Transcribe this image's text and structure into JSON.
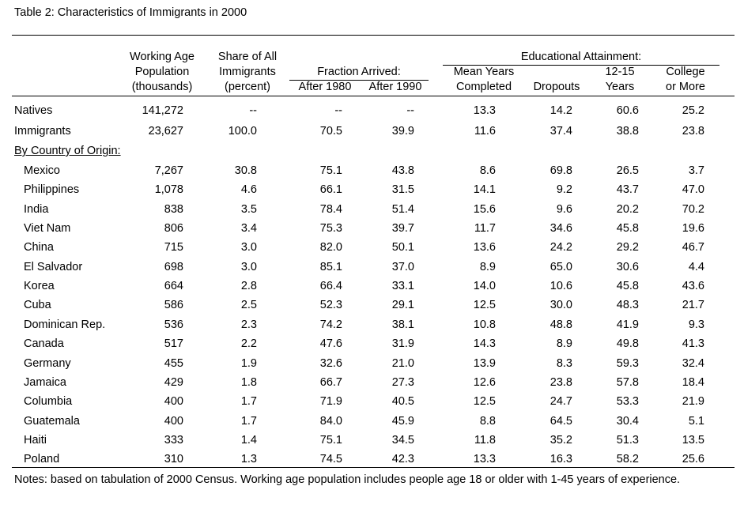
{
  "title": "Table 2:  Characteristics of Immigrants in 2000",
  "headers": {
    "working_age": [
      "Working Age",
      "Population",
      "(thousands)"
    ],
    "share": [
      "Share of All",
      "Immigrants",
      "(percent)"
    ],
    "fraction_group": "Fraction Arrived:",
    "after1980": "After 1980",
    "after1990": "After 1990",
    "edu_group": "Educational Attainment:",
    "mean_years": [
      "Mean Years",
      "Completed"
    ],
    "dropouts": "Dropouts",
    "years1215": [
      "12-15",
      "Years"
    ],
    "college": [
      "College",
      "or More"
    ]
  },
  "summary_rows": [
    {
      "label": "Natives",
      "values": [
        "141,272",
        "--",
        "--",
        "--",
        "13.3",
        "14.2",
        "60.6",
        "25.2"
      ]
    },
    {
      "label": "Immigrants",
      "values": [
        "23,627",
        "100.0",
        "70.5",
        "39.9",
        "11.6",
        "37.4",
        "38.8",
        "23.8"
      ]
    }
  ],
  "section_label": "By Country of Origin:",
  "country_rows": [
    {
      "label": "Mexico",
      "values": [
        "7,267",
        "30.8",
        "75.1",
        "43.8",
        "8.6",
        "69.8",
        "26.5",
        "3.7"
      ]
    },
    {
      "label": "Philippines",
      "values": [
        "1,078",
        "4.6",
        "66.1",
        "31.5",
        "14.1",
        "9.2",
        "43.7",
        "47.0"
      ]
    },
    {
      "label": "India",
      "values": [
        "838",
        "3.5",
        "78.4",
        "51.4",
        "15.6",
        "9.6",
        "20.2",
        "70.2"
      ]
    },
    {
      "label": "Viet Nam",
      "values": [
        "806",
        "3.4",
        "75.3",
        "39.7",
        "11.7",
        "34.6",
        "45.8",
        "19.6"
      ]
    },
    {
      "label": "China",
      "values": [
        "715",
        "3.0",
        "82.0",
        "50.1",
        "13.6",
        "24.2",
        "29.2",
        "46.7"
      ]
    },
    {
      "label": "El Salvador",
      "values": [
        "698",
        "3.0",
        "85.1",
        "37.0",
        "8.9",
        "65.0",
        "30.6",
        "4.4"
      ]
    },
    {
      "label": "Korea",
      "values": [
        "664",
        "2.8",
        "66.4",
        "33.1",
        "14.0",
        "10.6",
        "45.8",
        "43.6"
      ]
    },
    {
      "label": "Cuba",
      "values": [
        "586",
        "2.5",
        "52.3",
        "29.1",
        "12.5",
        "30.0",
        "48.3",
        "21.7"
      ]
    },
    {
      "label": "Dominican Rep.",
      "values": [
        "536",
        "2.3",
        "74.2",
        "38.1",
        "10.8",
        "48.8",
        "41.9",
        "9.3"
      ]
    },
    {
      "label": "Canada",
      "values": [
        "517",
        "2.2",
        "47.6",
        "31.9",
        "14.3",
        "8.9",
        "49.8",
        "41.3"
      ]
    },
    {
      "label": "Germany",
      "values": [
        "455",
        "1.9",
        "32.6",
        "21.0",
        "13.9",
        "8.3",
        "59.3",
        "32.4"
      ]
    },
    {
      "label": "Jamaica",
      "values": [
        "429",
        "1.8",
        "66.7",
        "27.3",
        "12.6",
        "23.8",
        "57.8",
        "18.4"
      ]
    },
    {
      "label": "Columbia",
      "values": [
        "400",
        "1.7",
        "71.9",
        "40.5",
        "12.5",
        "24.7",
        "53.3",
        "21.9"
      ]
    },
    {
      "label": "Guatemala",
      "values": [
        "400",
        "1.7",
        "84.0",
        "45.9",
        "8.8",
        "64.5",
        "30.4",
        "5.1"
      ]
    },
    {
      "label": "Haiti",
      "values": [
        "333",
        "1.4",
        "75.1",
        "34.5",
        "11.8",
        "35.2",
        "51.3",
        "13.5"
      ]
    },
    {
      "label": "Poland",
      "values": [
        "310",
        "1.3",
        "74.5",
        "42.3",
        "13.3",
        "16.3",
        "58.2",
        "25.6"
      ]
    }
  ],
  "notes": "Notes: based on tabulation of 2000 Census.  Working age population includes people age 18 or older with 1-45 years of experience."
}
